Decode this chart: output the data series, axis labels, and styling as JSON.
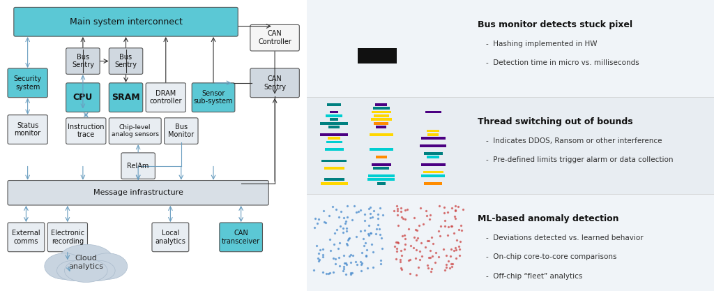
{
  "bg_color": "#ffffff",
  "left_panel_bg": "#ffffff",
  "right_panel_bg": "#f0f4f8",
  "cyan_color": "#5bc8d5",
  "gray_box_color": "#d0d8e0",
  "light_gray_box": "#e8edf2",
  "arrow_color": "#6a9ec0",
  "dark_arrow": "#333333",
  "text_color": "#222222",
  "title1": "Bus monitor detects stuck pixel",
  "title2": "Thread switching out of bounds",
  "title3": "ML-based anomaly detection",
  "bullet1": [
    "Hashing implemented in HW",
    "Detection time in micro vs. milliseconds"
  ],
  "bullet2": [
    "Indicates DDOS, Ransom or other interference",
    "Pre-defined limits trigger alarm or data collection"
  ],
  "bullet3": [
    "Deviations detected vs. learned behavior",
    "On-chip core-to-core comparisons",
    "Off-chip “fleet” analytics"
  ],
  "main_interconnect": "Main system interconnect",
  "message_infra": "Message infrastructure",
  "nodes_cyan": [
    "Security\nsystem",
    "CPU",
    "SRAM",
    "Sensor\nsub-system",
    "CAN\nController",
    "CAN\ntransceiver"
  ],
  "nodes_gray": [
    "Status\nmonitor",
    "Bus\nSentry",
    "Bus\nSentry",
    "DRAM\ncontroller",
    "CAN\nSentry",
    "Instruction\ntrace",
    "Chip-level\nanalog sensors",
    "Bus\nMonitor",
    "RelAm",
    "External\ncomms",
    "Electronic\nrecording",
    "Local\nanalytics"
  ],
  "cloud_text": "Cloud\nanalytics"
}
